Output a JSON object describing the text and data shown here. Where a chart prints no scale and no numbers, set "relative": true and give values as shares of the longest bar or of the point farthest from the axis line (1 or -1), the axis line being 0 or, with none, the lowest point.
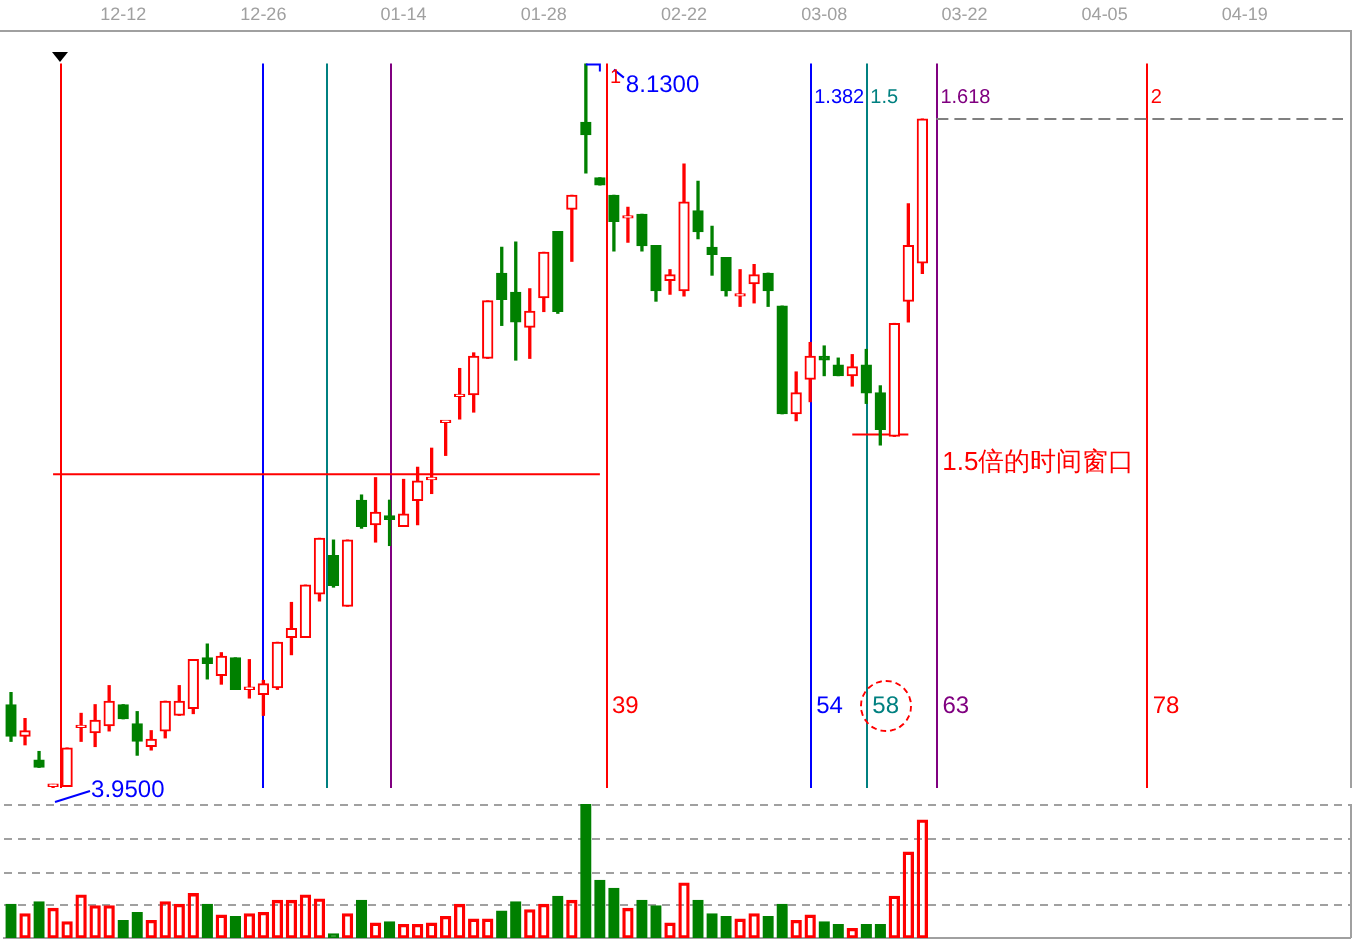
{
  "chart_data": [
    {
      "type": "candlestick",
      "categories": [
        null,
        null,
        null,
        null,
        null,
        null,
        null,
        null,
        "12-12",
        null,
        null,
        null,
        null,
        null,
        null,
        null,
        null,
        null,
        "12-26",
        null,
        null,
        null,
        null,
        null,
        null,
        null,
        null,
        null,
        "01-14",
        null,
        null,
        null,
        null,
        null,
        null,
        null,
        null,
        null,
        "01-28",
        null,
        null,
        null,
        null,
        null,
        null,
        null,
        null,
        null,
        "02-22",
        null,
        null,
        null,
        null,
        null,
        null,
        null,
        null,
        null,
        "03-08",
        null,
        null,
        null,
        null,
        null,
        null,
        null,
        null,
        null,
        "03-22",
        null,
        null,
        null,
        null,
        null,
        null,
        null,
        null,
        null,
        "04-05",
        null,
        null,
        null,
        null,
        null,
        null,
        null,
        null,
        null,
        "04-19",
        null,
        null,
        null,
        null,
        null,
        null,
        null
      ],
      "ohlc": [
        [
          4.43,
          4.5,
          4.22,
          4.25
        ],
        [
          4.25,
          4.35,
          4.2,
          4.28
        ],
        [
          4.11,
          4.16,
          4.07,
          4.07
        ],
        [
          3.96,
          3.97,
          3.95,
          3.97
        ],
        [
          3.96,
          4.18,
          3.96,
          4.18
        ],
        [
          4.3,
          4.38,
          4.22,
          4.31
        ],
        [
          4.27,
          4.43,
          4.19,
          4.34
        ],
        [
          4.31,
          4.54,
          4.28,
          4.45
        ],
        [
          4.43,
          4.43,
          4.35,
          4.35
        ],
        [
          4.32,
          4.39,
          4.14,
          4.22
        ],
        [
          4.19,
          4.28,
          4.17,
          4.23
        ],
        [
          4.28,
          4.45,
          4.24,
          4.45
        ],
        [
          4.37,
          4.54,
          4.37,
          4.45
        ],
        [
          4.41,
          4.69,
          4.38,
          4.69
        ],
        [
          4.7,
          4.78,
          4.58,
          4.67
        ],
        [
          4.6,
          4.73,
          4.55,
          4.71
        ],
        [
          4.7,
          4.7,
          4.52,
          4.52
        ],
        [
          4.52,
          4.69,
          4.47,
          4.53
        ],
        [
          4.49,
          4.57,
          4.37,
          4.55
        ],
        [
          4.53,
          4.79,
          4.52,
          4.79
        ],
        [
          4.82,
          5.02,
          4.72,
          4.87
        ],
        [
          4.82,
          5.12,
          4.82,
          5.12
        ],
        [
          5.07,
          5.39,
          5.03,
          5.39
        ],
        [
          5.29,
          5.38,
          5.11,
          5.12
        ],
        [
          5.0,
          5.38,
          5.0,
          5.38
        ],
        [
          5.61,
          5.64,
          5.45,
          5.46
        ],
        [
          5.47,
          5.74,
          5.37,
          5.54
        ],
        [
          5.52,
          5.61,
          5.35,
          5.5
        ],
        [
          5.46,
          5.73,
          5.46,
          5.53
        ],
        [
          5.61,
          5.8,
          5.47,
          5.72
        ],
        [
          5.73,
          5.91,
          5.65,
          5.74
        ],
        [
          6.06,
          6.06,
          5.87,
          6.06
        ],
        [
          6.21,
          6.37,
          6.08,
          6.21
        ],
        [
          6.22,
          6.46,
          6.12,
          6.44
        ],
        [
          6.43,
          6.76,
          6.43,
          6.76
        ],
        [
          6.92,
          7.07,
          6.62,
          6.77
        ],
        [
          6.81,
          7.1,
          6.42,
          6.64
        ],
        [
          6.61,
          6.83,
          6.43,
          6.7
        ],
        [
          6.78,
          7.04,
          6.7,
          7.04
        ],
        [
          7.16,
          7.16,
          6.69,
          6.7
        ],
        [
          7.29,
          7.37,
          6.99,
          7.37
        ],
        [
          7.79,
          8.13,
          7.5,
          7.72
        ],
        [
          7.47,
          7.47,
          7.43,
          7.43
        ],
        [
          7.37,
          7.37,
          7.05,
          7.22
        ],
        [
          7.24,
          7.3,
          7.1,
          7.25
        ],
        [
          7.26,
          7.26,
          7.05,
          7.08
        ],
        [
          7.08,
          7.08,
          6.76,
          6.82
        ],
        [
          6.88,
          6.94,
          6.8,
          6.91
        ],
        [
          6.82,
          7.55,
          6.79,
          7.33
        ],
        [
          7.28,
          7.45,
          7.12,
          7.16
        ],
        [
          7.07,
          7.19,
          6.91,
          7.03
        ],
        [
          7.01,
          7.01,
          6.79,
          6.82
        ],
        [
          6.79,
          6.94,
          6.73,
          6.8
        ],
        [
          6.86,
          6.97,
          6.75,
          6.91
        ],
        [
          6.92,
          6.92,
          6.73,
          6.82
        ],
        [
          6.73,
          6.73,
          6.11,
          6.11
        ],
        [
          6.11,
          6.35,
          6.07,
          6.23
        ],
        [
          6.31,
          6.52,
          6.18,
          6.44
        ],
        [
          6.44,
          6.5,
          6.33,
          6.42
        ],
        [
          6.39,
          6.43,
          6.33,
          6.33
        ],
        [
          6.33,
          6.45,
          6.27,
          6.38
        ],
        [
          6.39,
          6.48,
          6.17,
          6.23
        ],
        [
          6.23,
          6.27,
          5.93,
          6.02
        ],
        [
          5.98,
          6.63,
          5.98,
          6.63
        ],
        [
          6.76,
          7.32,
          6.64,
          7.08
        ],
        [
          6.98,
          7.81,
          6.92,
          7.81
        ],
        null,
        null,
        null,
        null,
        null,
        null,
        null,
        null,
        null,
        null,
        null,
        null,
        null,
        null,
        null,
        null,
        null,
        null,
        null,
        null,
        null,
        null,
        null,
        null,
        null,
        null,
        null,
        null,
        null,
        null
      ],
      "colors": [
        "#008000",
        "#ff0000",
        "#008000",
        "#ff0000",
        "#ff0000",
        "#ff0000",
        "#ff0000",
        "#ff0000",
        "#008000",
        "#008000",
        "#ff0000",
        "#ff0000",
        "#ff0000",
        "#ff0000",
        "#008000",
        "#ff0000",
        "#008000",
        "#ff0000",
        "#ff0000",
        "#ff0000",
        "#ff0000",
        "#ff0000",
        "#ff0000",
        "#008000",
        "#ff0000",
        "#008000",
        "#ff0000",
        "#008000",
        "#ff0000",
        "#ff0000",
        "#ff0000",
        "#ff0000",
        "#ff0000",
        "#ff0000",
        "#ff0000",
        "#008000",
        "#008000",
        "#ff0000",
        "#ff0000",
        "#008000",
        "#ff0000",
        "#008000",
        "#008000",
        "#008000",
        "#ff0000",
        "#008000",
        "#008000",
        "#ff0000",
        "#ff0000",
        "#008000",
        "#008000",
        "#008000",
        "#ff0000",
        "#ff0000",
        "#008000",
        "#008000",
        "#ff0000",
        "#ff0000",
        "#008000",
        "#008000",
        "#ff0000",
        "#008000",
        "#008000",
        "#ff0000",
        "#ff0000",
        "#ff0000",
        null,
        null,
        null,
        null,
        null,
        null,
        null,
        null,
        null,
        null,
        null,
        null,
        null,
        null,
        null,
        null,
        null,
        null,
        null,
        null,
        null,
        null,
        null,
        null,
        null,
        null,
        null,
        null,
        null,
        null
      ],
      "tick_labels": "x",
      "series": [
        {
          "type": "line",
          "color": "#ff0000",
          "values": [
            null,
            null,
            null,
            5.76,
            5.76,
            5.76,
            5.76,
            5.76,
            5.76,
            5.76,
            5.76,
            5.76,
            5.76,
            5.76,
            5.76,
            5.76,
            5.76,
            5.76,
            5.76,
            5.76,
            5.76,
            5.76,
            5.76,
            5.76,
            5.76,
            5.76,
            5.76,
            5.76,
            5.76,
            5.76,
            5.76,
            5.76,
            5.76,
            5.76,
            5.76,
            5.76,
            5.76,
            5.76,
            5.76,
            5.76,
            5.76,
            5.76,
            5.76,
            null,
            null,
            null,
            null,
            null,
            null,
            null,
            null,
            null,
            null,
            null,
            null,
            null,
            null,
            null,
            null,
            null,
            null,
            null,
            null,
            null,
            null,
            null,
            null,
            null,
            null,
            null,
            null,
            null,
            null,
            null,
            null,
            null,
            null,
            null,
            null,
            null,
            null,
            null,
            null,
            null,
            null,
            null,
            null,
            null,
            null,
            null,
            null,
            null,
            null,
            null,
            null,
            null
          ]
        },
        {
          "type": "line",
          "color": "#ff0000",
          "values": [
            null,
            null,
            null,
            null,
            null,
            null,
            null,
            null,
            null,
            null,
            null,
            null,
            null,
            null,
            null,
            null,
            null,
            null,
            null,
            null,
            null,
            null,
            null,
            null,
            null,
            null,
            null,
            null,
            null,
            null,
            null,
            null,
            null,
            null,
            null,
            null,
            null,
            null,
            null,
            null,
            null,
            null,
            null,
            null,
            null,
            null,
            null,
            null,
            null,
            null,
            null,
            null,
            null,
            null,
            null,
            null,
            null,
            null,
            null,
            null,
            5.99,
            5.99,
            5.99,
            5.99,
            5.99,
            null,
            null,
            null,
            null,
            null,
            null,
            null,
            null,
            null,
            null,
            null,
            null,
            null,
            null,
            null,
            null,
            null,
            null,
            null,
            null,
            null,
            null,
            null,
            null,
            null,
            null,
            null,
            null,
            null,
            null,
            null
          ]
        },
        {
          "type": "line",
          "color": "#808080",
          "line_style": "dashed",
          "values": [
            null,
            null,
            null,
            null,
            null,
            null,
            null,
            null,
            null,
            null,
            null,
            null,
            null,
            null,
            null,
            null,
            null,
            null,
            null,
            null,
            null,
            null,
            null,
            null,
            null,
            null,
            null,
            null,
            null,
            null,
            null,
            null,
            null,
            null,
            null,
            null,
            null,
            null,
            null,
            null,
            null,
            null,
            null,
            null,
            null,
            null,
            null,
            null,
            null,
            null,
            null,
            null,
            null,
            null,
            null,
            null,
            null,
            null,
            null,
            null,
            null,
            null,
            null,
            null,
            null,
            null,
            7.81,
            7.81,
            7.81,
            7.81,
            7.81,
            7.81,
            7.81,
            7.81,
            7.81,
            7.81,
            7.81,
            7.81,
            7.81,
            7.81,
            7.81,
            7.81,
            7.81,
            7.81,
            7.81,
            7.81,
            7.81,
            7.81,
            7.81,
            7.81,
            7.81,
            7.81,
            7.81,
            7.81,
            7.81,
            7.81
          ]
        }
      ],
      "annotations": [
        "8.1300",
        "3.9500",
        "1",
        "1.382",
        "1.5",
        "1.618",
        "2",
        "39",
        "54",
        "58",
        "63",
        "78",
        "1.5倍的时间窗口"
      ]
    },
    {
      "type": "bar",
      "categories": [
        null,
        null,
        null,
        null,
        null,
        null,
        null,
        null,
        null,
        null,
        null,
        null,
        null,
        null,
        null,
        null,
        null,
        null,
        null,
        null,
        null,
        null,
        null,
        null,
        null,
        null,
        null,
        null,
        null,
        null,
        null,
        null,
        null,
        null,
        null,
        null,
        null,
        null,
        null,
        null,
        null,
        null,
        null,
        null,
        null,
        null,
        null,
        null,
        null,
        null,
        null,
        null,
        null,
        null,
        null,
        null,
        null,
        null,
        null,
        null,
        null,
        null,
        null,
        null,
        null,
        null,
        null,
        null,
        null,
        null,
        null,
        null,
        null,
        null,
        null,
        null,
        null,
        null,
        null,
        null,
        null,
        null,
        null,
        null,
        null,
        null,
        null,
        null,
        null,
        null,
        null,
        null,
        null,
        null,
        null,
        null
      ],
      "values": [
        0.25,
        0.18,
        0.27,
        0.22,
        0.12,
        0.32,
        0.24,
        0.24,
        0.13,
        0.19,
        0.13,
        0.27,
        0.25,
        0.33,
        0.25,
        0.17,
        0.16,
        0.18,
        0.19,
        0.28,
        0.28,
        0.32,
        0.29,
        0.03,
        0.18,
        0.28,
        0.11,
        0.12,
        0.1,
        0.1,
        0.11,
        0.16,
        0.25,
        0.14,
        0.14,
        0.2,
        0.27,
        0.21,
        0.25,
        0.31,
        0.28,
        1,
        0.43,
        0.37,
        0.22,
        0.28,
        0.24,
        0.11,
        0.41,
        0.28,
        0.18,
        0.16,
        0.14,
        0.18,
        0.16,
        0.25,
        0.13,
        0.17,
        0.12,
        0.1,
        0.07,
        0.1,
        0.1,
        0.31,
        0.64,
        0.88,
        null,
        null,
        null,
        null,
        null,
        null,
        null,
        null,
        null,
        null,
        null,
        null,
        null,
        null,
        null,
        null,
        null,
        null,
        null,
        null,
        null,
        null,
        null,
        null,
        null,
        null,
        null,
        null,
        null,
        null
      ],
      "colors": [
        "#008000",
        "#ff0000",
        "#008000",
        "#ff0000",
        "#ff0000",
        "#ff0000",
        "#ff0000",
        "#ff0000",
        "#008000",
        "#008000",
        "#ff0000",
        "#ff0000",
        "#ff0000",
        "#ff0000",
        "#008000",
        "#ff0000",
        "#008000",
        "#ff0000",
        "#ff0000",
        "#ff0000",
        "#ff0000",
        "#ff0000",
        "#ff0000",
        "#008000",
        "#ff0000",
        "#008000",
        "#ff0000",
        "#008000",
        "#ff0000",
        "#ff0000",
        "#ff0000",
        "#ff0000",
        "#ff0000",
        "#ff0000",
        "#ff0000",
        "#008000",
        "#008000",
        "#ff0000",
        "#ff0000",
        "#008000",
        "#ff0000",
        "#008000",
        "#008000",
        "#008000",
        "#ff0000",
        "#008000",
        "#008000",
        "#ff0000",
        "#ff0000",
        "#008000",
        "#008000",
        "#008000",
        "#ff0000",
        "#ff0000",
        "#008000",
        "#008000",
        "#ff0000",
        "#ff0000",
        "#008000",
        "#008000",
        "#ff0000",
        "#008000",
        "#008000",
        "#ff0000",
        "#ff0000",
        "#ff0000",
        null,
        null,
        null,
        null,
        null,
        null,
        null,
        null,
        null,
        null,
        null,
        null,
        null,
        null,
        null,
        null,
        null,
        null,
        null,
        null,
        null,
        null,
        null,
        null,
        null,
        null,
        null,
        null,
        null,
        null
      ],
      "relative": true,
      "tick_labels": false,
      "grid": true
    }
  ]
}
